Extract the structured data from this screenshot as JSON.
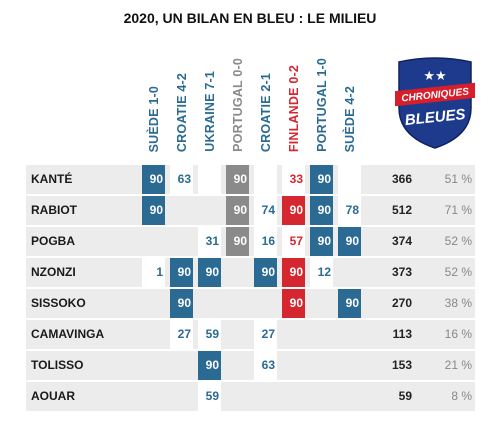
{
  "title": "2020, UN BILAN EN BLEU : LE MILIEU",
  "colors": {
    "blue": "#2a6a93",
    "gray": "#8a8a8a",
    "red": "#d42730",
    "row_bg": "#ececec",
    "logo_blue": "#1d3a8c",
    "logo_red": "#d61f2b"
  },
  "logo": {
    "line1": "CHRONIQUES",
    "line2": "BLEUES",
    "stars": "★★"
  },
  "matches": [
    {
      "label": "SUÈDE 1-0",
      "type": "win"
    },
    {
      "label": "CROATIE 4-2",
      "type": "win"
    },
    {
      "label": "UKRAINE 7-1",
      "type": "win"
    },
    {
      "label": "PORTUGAL 0-0",
      "type": "draw"
    },
    {
      "label": "CROATIE 2-1",
      "type": "win"
    },
    {
      "label": "FINLANDE 0-2",
      "type": "loss"
    },
    {
      "label": "PORTUGAL 1-0",
      "type": "win"
    },
    {
      "label": "SUÈDE 4-2",
      "type": "win"
    }
  ],
  "players": [
    {
      "name": "KANTÉ",
      "minutes": [
        90,
        63,
        null,
        90,
        null,
        33,
        90,
        null
      ],
      "total": "366",
      "pct": "51 %"
    },
    {
      "name": "RABIOT",
      "minutes": [
        90,
        null,
        null,
        90,
        74,
        90,
        90,
        78
      ],
      "total": "512",
      "pct": "71 %"
    },
    {
      "name": "POGBA",
      "minutes": [
        null,
        null,
        31,
        90,
        16,
        57,
        90,
        90
      ],
      "total": "374",
      "pct": "52 %"
    },
    {
      "name": "NZONZI",
      "minutes": [
        1,
        90,
        90,
        null,
        90,
        90,
        12,
        null
      ],
      "total": "373",
      "pct": "52 %"
    },
    {
      "name": "SISSOKO",
      "minutes": [
        null,
        90,
        null,
        null,
        null,
        90,
        null,
        90
      ],
      "total": "270",
      "pct": "38 %"
    },
    {
      "name": "CAMAVINGA",
      "minutes": [
        null,
        27,
        59,
        null,
        27,
        null,
        null,
        null
      ],
      "total": "113",
      "pct": "16 %"
    },
    {
      "name": "TOLISSO",
      "minutes": [
        null,
        null,
        90,
        null,
        63,
        null,
        null,
        null
      ],
      "total": "153",
      "pct": "21 %"
    },
    {
      "name": "AOUAR",
      "minutes": [
        null,
        null,
        59,
        null,
        null,
        null,
        null,
        null
      ],
      "total": "59",
      "pct": "8 %"
    }
  ]
}
